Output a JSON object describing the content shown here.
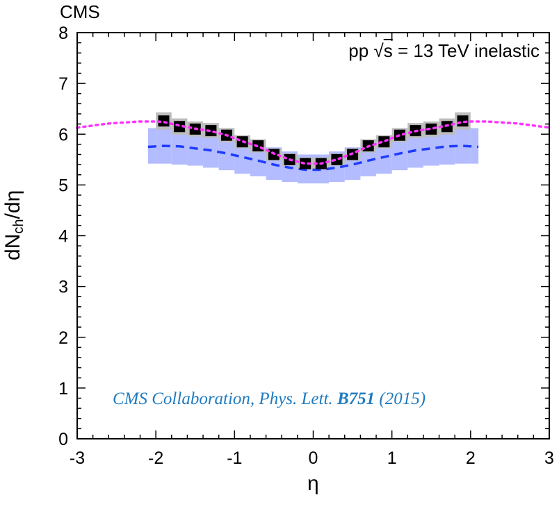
{
  "header": {
    "experiment": "CMS"
  },
  "citation": {
    "before": "CMS Collaboration, Phys. Lett. ",
    "volume": "B751",
    "after": " (2015)"
  },
  "colors": {
    "data_marker": "#000000",
    "data_band": "#bdbdbd",
    "model_dotted": "#ff33ff",
    "model_dashed": "#1f3cff",
    "model_band": "#9aa6ff",
    "citation": "#1f7bc0"
  },
  "chart_data": {
    "type": "scatter",
    "xlabel": "η",
    "ylabel_main": "dN",
    "ylabel_sub": "ch",
    "ylabel_tail": "/dη",
    "annotation_pre": "pp ",
    "annotation_sqrt_sym": "√",
    "annotation_sqrt_arg": "s",
    "annotation_post": " = 13 TeV inelastic",
    "xlim": [
      -3,
      3
    ],
    "ylim": [
      0,
      8
    ],
    "xticks": [
      "-3",
      "-2",
      "-1",
      "0",
      "1",
      "2",
      "3"
    ],
    "yticks": [
      "0",
      "1",
      "2",
      "3",
      "4",
      "5",
      "6",
      "7",
      "8"
    ],
    "grid": false,
    "series": [
      {
        "kind": "data-points",
        "x": [
          -1.9,
          -1.7,
          -1.5,
          -1.3,
          -1.1,
          -0.9,
          -0.7,
          -0.5,
          -0.3,
          -0.1,
          0.1,
          0.3,
          0.5,
          0.7,
          0.9,
          1.1,
          1.3,
          1.5,
          1.7,
          1.9
        ],
        "y": [
          6.26,
          6.15,
          6.1,
          6.07,
          5.98,
          5.85,
          5.77,
          5.6,
          5.5,
          5.42,
          5.42,
          5.5,
          5.6,
          5.77,
          5.85,
          5.98,
          6.07,
          6.1,
          6.15,
          6.26
        ],
        "band_halfwidth": [
          0.17,
          0.16,
          0.15,
          0.15,
          0.14,
          0.13,
          0.13,
          0.12,
          0.12,
          0.12,
          0.12,
          0.12,
          0.12,
          0.13,
          0.13,
          0.14,
          0.15,
          0.15,
          0.16,
          0.17
        ]
      },
      {
        "kind": "model-dotted",
        "x": [
          -3.0,
          -2.6,
          -2.2,
          -2.0,
          -1.9,
          -1.7,
          -1.5,
          -1.3,
          -1.1,
          -0.9,
          -0.7,
          -0.5,
          -0.3,
          -0.1,
          0.1,
          0.3,
          0.5,
          0.7,
          0.9,
          1.1,
          1.3,
          1.5,
          1.7,
          1.9,
          2.0,
          2.2,
          2.6,
          3.0
        ],
        "y": [
          6.13,
          6.21,
          6.25,
          6.25,
          6.24,
          6.17,
          6.11,
          6.06,
          5.98,
          5.86,
          5.76,
          5.62,
          5.5,
          5.42,
          5.42,
          5.5,
          5.62,
          5.76,
          5.86,
          5.98,
          6.06,
          6.11,
          6.17,
          6.24,
          6.25,
          6.25,
          6.21,
          6.13
        ]
      },
      {
        "kind": "model-dashed",
        "x": [
          -2.1,
          -1.9,
          -1.7,
          -1.5,
          -1.3,
          -1.1,
          -0.9,
          -0.7,
          -0.5,
          -0.3,
          -0.1,
          0.1,
          0.3,
          0.5,
          0.7,
          0.9,
          1.1,
          1.3,
          1.5,
          1.7,
          1.9,
          2.1
        ],
        "y": [
          5.75,
          5.77,
          5.76,
          5.72,
          5.68,
          5.62,
          5.55,
          5.48,
          5.4,
          5.34,
          5.3,
          5.3,
          5.34,
          5.4,
          5.48,
          5.55,
          5.62,
          5.68,
          5.72,
          5.76,
          5.77,
          5.75
        ],
        "band_lower": [
          5.42,
          5.42,
          5.4,
          5.38,
          5.34,
          5.29,
          5.22,
          5.17,
          5.1,
          5.06,
          5.03,
          5.03,
          5.06,
          5.1,
          5.17,
          5.22,
          5.29,
          5.34,
          5.38,
          5.4,
          5.42,
          5.42
        ],
        "band_upper": [
          6.12,
          6.12,
          6.12,
          6.08,
          6.04,
          5.98,
          5.9,
          5.82,
          5.74,
          5.66,
          5.6,
          5.6,
          5.66,
          5.74,
          5.82,
          5.9,
          5.98,
          6.04,
          6.08,
          6.12,
          6.12,
          6.12
        ]
      }
    ]
  }
}
